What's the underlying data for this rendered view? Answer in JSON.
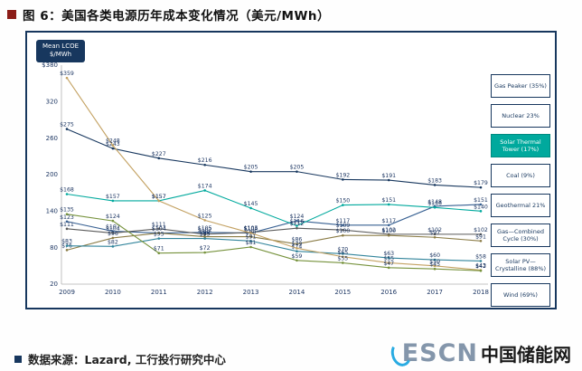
{
  "header": {
    "title": "图 6：美国各类电源历年成本变化情况（美元/MWh）"
  },
  "chart_data": {
    "type": "line",
    "y_axis_label_line1": "Mean LCOE",
    "y_axis_label_line2": "$/MWh",
    "x": [
      "2009",
      "2010",
      "2011",
      "2012",
      "2013",
      "2014",
      "2015",
      "2016",
      "2017",
      "2018"
    ],
    "ylim": [
      20,
      380
    ],
    "y_tick_values": [
      380,
      320,
      260,
      200,
      140,
      80,
      20
    ],
    "y_tick_labels": [
      "$380",
      "320",
      "260",
      "200",
      "140",
      "80",
      "20"
    ],
    "grid": false,
    "legend_position": "right",
    "label_color": "#1f3864",
    "series": [
      {
        "name": "Gas Peaker",
        "legend_label": "Gas Peaker (35%)",
        "color": "#17375e",
        "highlight": false,
        "values": [
          275,
          243,
          227,
          216,
          205,
          205,
          192,
          191,
          183,
          179
        ]
      },
      {
        "name": "Nuclear",
        "legend_label": "Nuclear 23%",
        "color": "#376092",
        "highlight": false,
        "values": [
          123,
          107,
          104,
          105,
          104,
          124,
          117,
          117,
          148,
          151
        ]
      },
      {
        "name": "Solar Thermal Tower",
        "legend_label": "Solar Thermal Tower (17%)",
        "color": "#00a99d",
        "highlight": true,
        "values": [
          168,
          157,
          157,
          174,
          145,
          116,
          150,
          151,
          146,
          140
        ]
      },
      {
        "name": "Coal",
        "legend_label": "Coal (9%)",
        "color": "#595959",
        "highlight": false,
        "values": [
          111,
          104,
          111,
          102,
          105,
          112,
          109,
          102,
          102,
          102
        ]
      },
      {
        "name": "Geothermal",
        "legend_label": "Geothermal 21%",
        "color": "#8a7b45",
        "highlight": false,
        "values": [
          76,
          96,
          104,
          98,
          98,
          86,
          100,
          100,
          97,
          91
        ]
      },
      {
        "name": "Gas—Combined Cycle",
        "legend_label": "Gas—Combined Cycle (30%)",
        "color": "#31849b",
        "highlight": false,
        "values": [
          83,
          82,
          95,
          95,
          91,
          74,
          70,
          63,
          60,
          58
        ]
      },
      {
        "name": "Solar PV—Crystalline",
        "legend_label": "Solar PV—Crystalline (88%)",
        "color": "#c3a161",
        "highlight": false,
        "values": [
          359,
          248,
          157,
          125,
          104,
          79,
          65,
          55,
          50,
          43
        ]
      },
      {
        "name": "Wind",
        "legend_label": "Wind (69%)",
        "color": "#76923c",
        "highlight": false,
        "values": [
          135,
          124,
          71,
          72,
          81,
          59,
          55,
          47,
          45,
          42
        ]
      }
    ]
  },
  "footer": {
    "source": "数据来源：Lazard, 工行投行研究中心",
    "logo_en": "ESCN",
    "logo_cn": "中国储能网"
  },
  "accent_colors": {
    "title_bullet": "#8c1d18",
    "source_bullet": "#17375e",
    "chart_border": "#17375e",
    "highlight_teal": "#00a99d",
    "logo_blue": "#29abe2"
  }
}
